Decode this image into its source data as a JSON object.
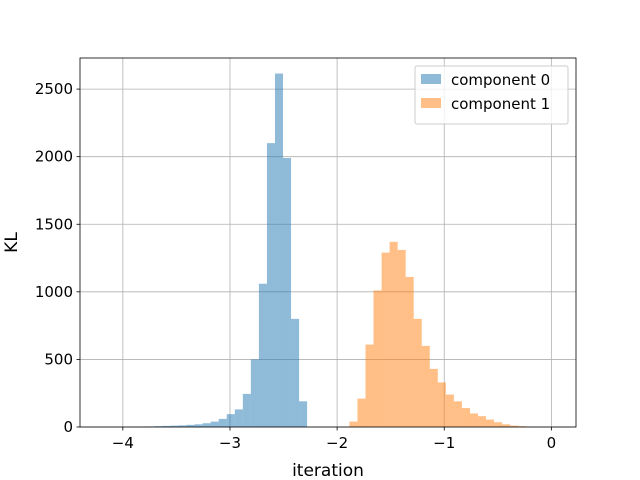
{
  "chart_data": {
    "type": "bar",
    "title": "",
    "xlabel": "iteration",
    "ylabel": "KL",
    "xlim": [
      -4.4,
      0.23
    ],
    "ylim": [
      0,
      2730
    ],
    "xticks": [
      -4,
      -3,
      -2,
      -1,
      0
    ],
    "xtick_labels": [
      "−4",
      "−3",
      "−2",
      "−1",
      "0"
    ],
    "yticks": [
      0,
      500,
      1000,
      1500,
      2000,
      2500
    ],
    "ytick_labels": [
      "0",
      "500",
      "1000",
      "1500",
      "2000",
      "2500"
    ],
    "grid": true,
    "legend_position": "top-right",
    "series": [
      {
        "name": "component 0",
        "color": "#1f77b4",
        "opacity": 0.5,
        "bin_edges": [
          -3.93,
          -3.855,
          -3.78,
          -3.705,
          -3.63,
          -3.555,
          -3.48,
          -3.405,
          -3.33,
          -3.255,
          -3.18,
          -3.105,
          -3.03,
          -2.955,
          -2.88,
          -2.805,
          -2.73,
          -2.655,
          -2.58,
          -2.505,
          -2.43,
          -2.355,
          -2.28,
          -2.205,
          -2.13
        ],
        "counts": [
          2,
          2,
          4,
          6,
          8,
          10,
          12,
          16,
          20,
          28,
          40,
          60,
          95,
          130,
          245,
          500,
          1060,
          2100,
          2615,
          1990,
          800,
          190,
          0,
          0
        ]
      },
      {
        "name": "component 1",
        "color": "#ff7f0e",
        "opacity": 0.5,
        "bin_edges": [
          -1.96,
          -1.885,
          -1.81,
          -1.735,
          -1.66,
          -1.585,
          -1.51,
          -1.435,
          -1.36,
          -1.285,
          -1.21,
          -1.135,
          -1.06,
          -0.985,
          -0.91,
          -0.835,
          -0.76,
          -0.685,
          -0.61,
          -0.535,
          -0.46,
          -0.385,
          -0.31,
          -0.235,
          -0.16,
          -0.085,
          -0.01
        ],
        "counts": [
          2,
          40,
          210,
          610,
          1010,
          1290,
          1370,
          1310,
          1110,
          800,
          600,
          430,
          330,
          240,
          190,
          140,
          100,
          80,
          55,
          35,
          20,
          10,
          6,
          3,
          2,
          1
        ]
      }
    ]
  }
}
